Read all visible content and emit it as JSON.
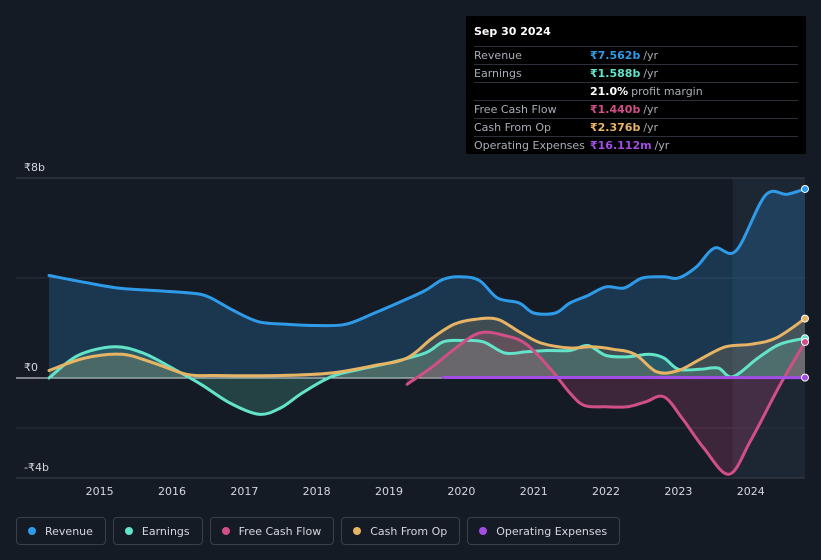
{
  "chart_data": {
    "type": "area",
    "currency_symbol": "₹",
    "y_ticks": [
      {
        "value": 8,
        "label": "₹8b"
      },
      {
        "value": 0,
        "label": "₹0"
      },
      {
        "value": -4,
        "label": "-₹4b"
      }
    ],
    "ylim": [
      -4,
      8
    ],
    "xlim": [
      2014.3,
      2024.75
    ],
    "x_ticks": [
      "2015",
      "2016",
      "2017",
      "2018",
      "2019",
      "2020",
      "2021",
      "2022",
      "2023",
      "2024"
    ],
    "highlight_start": 2023.75,
    "series": [
      {
        "name": "Revenue",
        "color": "#2f9be8",
        "fill": true,
        "points": [
          [
            2014.3,
            4.1
          ],
          [
            2014.75,
            3.85
          ],
          [
            2015.25,
            3.6
          ],
          [
            2015.75,
            3.5
          ],
          [
            2016.25,
            3.4
          ],
          [
            2016.5,
            3.25
          ],
          [
            2016.85,
            2.7
          ],
          [
            2017.2,
            2.25
          ],
          [
            2017.6,
            2.15
          ],
          [
            2018.0,
            2.1
          ],
          [
            2018.4,
            2.15
          ],
          [
            2018.8,
            2.6
          ],
          [
            2019.2,
            3.1
          ],
          [
            2019.5,
            3.5
          ],
          [
            2019.75,
            3.95
          ],
          [
            2020.0,
            4.05
          ],
          [
            2020.25,
            3.9
          ],
          [
            2020.5,
            3.2
          ],
          [
            2020.8,
            3.0
          ],
          [
            2021.0,
            2.6
          ],
          [
            2021.3,
            2.6
          ],
          [
            2021.5,
            3.0
          ],
          [
            2021.75,
            3.3
          ],
          [
            2022.0,
            3.65
          ],
          [
            2022.25,
            3.6
          ],
          [
            2022.5,
            4.0
          ],
          [
            2022.8,
            4.05
          ],
          [
            2023.0,
            4.0
          ],
          [
            2023.25,
            4.45
          ],
          [
            2023.5,
            5.2
          ],
          [
            2023.8,
            5.1
          ],
          [
            2024.2,
            7.3
          ],
          [
            2024.5,
            7.35
          ],
          [
            2024.75,
            7.562
          ]
        ]
      },
      {
        "name": "Earnings",
        "color": "#63e3c8",
        "fill": true,
        "points": [
          [
            2014.3,
            0.0
          ],
          [
            2014.7,
            0.9
          ],
          [
            2015.2,
            1.25
          ],
          [
            2015.6,
            1.0
          ],
          [
            2016.0,
            0.4
          ],
          [
            2016.4,
            -0.25
          ],
          [
            2016.8,
            -1.0
          ],
          [
            2017.2,
            -1.45
          ],
          [
            2017.5,
            -1.2
          ],
          [
            2017.8,
            -0.6
          ],
          [
            2018.2,
            0.05
          ],
          [
            2018.6,
            0.35
          ],
          [
            2019.0,
            0.6
          ],
          [
            2019.5,
            1.0
          ],
          [
            2019.75,
            1.45
          ],
          [
            2020.0,
            1.5
          ],
          [
            2020.3,
            1.45
          ],
          [
            2020.6,
            1.0
          ],
          [
            2020.9,
            1.05
          ],
          [
            2021.2,
            1.1
          ],
          [
            2021.5,
            1.1
          ],
          [
            2021.75,
            1.3
          ],
          [
            2022.0,
            0.9
          ],
          [
            2022.3,
            0.85
          ],
          [
            2022.6,
            0.95
          ],
          [
            2022.8,
            0.8
          ],
          [
            2023.0,
            0.35
          ],
          [
            2023.3,
            0.35
          ],
          [
            2023.55,
            0.4
          ],
          [
            2023.75,
            0.05
          ],
          [
            2024.1,
            0.8
          ],
          [
            2024.4,
            1.35
          ],
          [
            2024.75,
            1.588
          ]
        ]
      },
      {
        "name": "Free Cash Flow",
        "color": "#d14f87",
        "fill": true,
        "points": [
          [
            2019.25,
            -0.25
          ],
          [
            2019.6,
            0.45
          ],
          [
            2019.9,
            1.15
          ],
          [
            2020.25,
            1.8
          ],
          [
            2020.6,
            1.7
          ],
          [
            2020.9,
            1.35
          ],
          [
            2021.25,
            0.3
          ],
          [
            2021.5,
            -0.6
          ],
          [
            2021.7,
            -1.1
          ],
          [
            2022.0,
            -1.15
          ],
          [
            2022.3,
            -1.15
          ],
          [
            2022.55,
            -0.95
          ],
          [
            2022.8,
            -0.75
          ],
          [
            2023.05,
            -1.6
          ],
          [
            2023.35,
            -2.8
          ],
          [
            2023.7,
            -3.85
          ],
          [
            2024.0,
            -2.5
          ],
          [
            2024.4,
            -0.3
          ],
          [
            2024.75,
            1.44
          ]
        ]
      },
      {
        "name": "Cash From Op",
        "color": "#e7b465",
        "fill": true,
        "points": [
          [
            2014.3,
            0.3
          ],
          [
            2014.8,
            0.8
          ],
          [
            2015.3,
            0.95
          ],
          [
            2015.7,
            0.65
          ],
          [
            2016.2,
            0.15
          ],
          [
            2016.6,
            0.1
          ],
          [
            2017.5,
            0.1
          ],
          [
            2018.2,
            0.2
          ],
          [
            2018.8,
            0.5
          ],
          [
            2019.25,
            0.8
          ],
          [
            2019.6,
            1.6
          ],
          [
            2019.9,
            2.15
          ],
          [
            2020.2,
            2.35
          ],
          [
            2020.5,
            2.35
          ],
          [
            2020.8,
            1.85
          ],
          [
            2021.1,
            1.4
          ],
          [
            2021.5,
            1.2
          ],
          [
            2021.8,
            1.25
          ],
          [
            2022.1,
            1.15
          ],
          [
            2022.4,
            0.95
          ],
          [
            2022.7,
            0.25
          ],
          [
            2023.0,
            0.3
          ],
          [
            2023.3,
            0.75
          ],
          [
            2023.65,
            1.25
          ],
          [
            2024.0,
            1.35
          ],
          [
            2024.35,
            1.6
          ],
          [
            2024.75,
            2.376
          ]
        ]
      },
      {
        "name": "Operating Expenses",
        "color": "#a24de6",
        "fill": false,
        "points": [
          [
            2019.75,
            0.02
          ],
          [
            2024.75,
            0.016
          ]
        ]
      }
    ],
    "tooltip": {
      "date": "Sep 30 2024",
      "rows": [
        {
          "label": "Revenue",
          "value": "₹7.562b",
          "unit": "/yr",
          "color": "#2f9be8"
        },
        {
          "label": "Earnings",
          "value": "₹1.588b",
          "unit": "/yr",
          "color": "#63e3c8"
        },
        {
          "label": "",
          "value": "21.0%",
          "unit": "profit margin",
          "color": "#ffffff"
        },
        {
          "label": "Free Cash Flow",
          "value": "₹1.440b",
          "unit": "/yr",
          "color": "#d14f87"
        },
        {
          "label": "Cash From Op",
          "value": "₹2.376b",
          "unit": "/yr",
          "color": "#e7b465"
        },
        {
          "label": "Operating Expenses",
          "value": "₹16.112m",
          "unit": "/yr",
          "color": "#a24de6"
        }
      ]
    },
    "legend": [
      {
        "label": "Revenue",
        "color": "#2f9be8"
      },
      {
        "label": "Earnings",
        "color": "#63e3c8"
      },
      {
        "label": "Free Cash Flow",
        "color": "#d14f87"
      },
      {
        "label": "Cash From Op",
        "color": "#e7b465"
      },
      {
        "label": "Operating Expenses",
        "color": "#a24de6"
      }
    ]
  }
}
